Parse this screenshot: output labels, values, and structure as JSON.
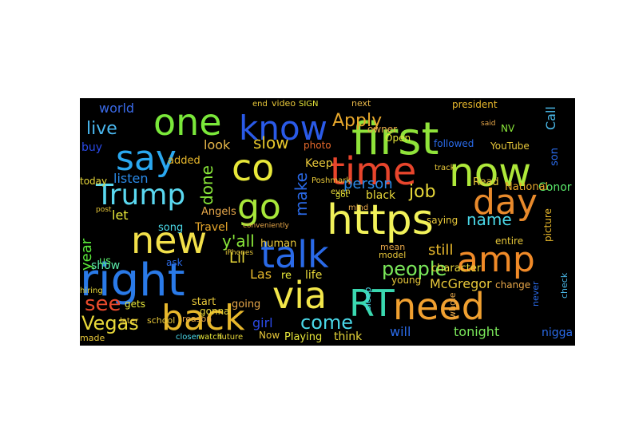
{
  "wordcloud": {
    "background": "#000000",
    "words": [
      {
        "text": "first",
        "color": "#8fe33a"
      },
      {
        "text": "time",
        "color": "#e8452c"
      },
      {
        "text": "now",
        "color": "#aee83a"
      },
      {
        "text": "day",
        "color": "#e88a2c"
      },
      {
        "text": "https",
        "color": "#f2f25a"
      },
      {
        "text": "amp",
        "color": "#f08a28"
      },
      {
        "text": "need",
        "color": "#f0a030"
      },
      {
        "text": "RT",
        "color": "#3ad8b0"
      },
      {
        "text": "via",
        "color": "#f2e64a"
      },
      {
        "text": "talk",
        "color": "#2a6ae8"
      },
      {
        "text": "right",
        "color": "#2a7ae8"
      },
      {
        "text": "new",
        "color": "#f2e04a"
      },
      {
        "text": "back",
        "color": "#e8b82c"
      },
      {
        "text": "go",
        "color": "#a8e83a"
      },
      {
        "text": "co",
        "color": "#e8e83a"
      },
      {
        "text": "know",
        "color": "#2a5ae8"
      },
      {
        "text": "one",
        "color": "#7ae83a"
      },
      {
        "text": "say",
        "color": "#2aa8f0"
      },
      {
        "text": "Trump",
        "color": "#5ad8f0"
      },
      {
        "text": "see",
        "color": "#e84a2c"
      },
      {
        "text": "Vegas",
        "color": "#e8d83a"
      },
      {
        "text": "live",
        "color": "#4ab8f0"
      },
      {
        "text": "world",
        "color": "#3a6ae8"
      },
      {
        "text": "Apply",
        "color": "#e8a82c"
      },
      {
        "text": "people",
        "color": "#7ae85a"
      },
      {
        "text": "come",
        "color": "#4ad8e8"
      },
      {
        "text": "done",
        "color": "#8ae83a"
      },
      {
        "text": "slow",
        "color": "#e8c82c"
      },
      {
        "text": "look",
        "color": "#e8b84a"
      },
      {
        "text": "job",
        "color": "#e8d83a"
      },
      {
        "text": "person",
        "color": "#2a8ae8"
      },
      {
        "text": "name",
        "color": "#4ad8e8"
      },
      {
        "text": "make",
        "color": "#2a6ae8"
      },
      {
        "text": "y'all",
        "color": "#8ae83a"
      },
      {
        "text": "Lil",
        "color": "#e8d83a"
      },
      {
        "text": "Las",
        "color": "#e8b82c"
      },
      {
        "text": "McGregor",
        "color": "#e8c83a"
      },
      {
        "text": "still",
        "color": "#e8b82c"
      },
      {
        "text": "year",
        "color": "#5ae83a"
      },
      {
        "text": "show",
        "color": "#5ae8a8"
      },
      {
        "text": "let",
        "color": "#e8e83a"
      },
      {
        "text": "listen",
        "color": "#2a8ae8"
      },
      {
        "text": "buy",
        "color": "#2a4ae8"
      },
      {
        "text": "added",
        "color": "#e8b82c"
      },
      {
        "text": "today",
        "color": "#e8d83a"
      },
      {
        "text": "Call",
        "color": "#4ab8e8"
      },
      {
        "text": "Read",
        "color": "#e8c83a"
      },
      {
        "text": "son",
        "color": "#2a6ae8"
      },
      {
        "text": "Conor",
        "color": "#5ae86a"
      },
      {
        "text": "National",
        "color": "#e8a82c"
      },
      {
        "text": "YouTube",
        "color": "#e8c83a"
      },
      {
        "text": "followed",
        "color": "#2a6ae8"
      },
      {
        "text": "Open",
        "color": "#e8e83a"
      },
      {
        "text": "owner",
        "color": "#e8a84a"
      },
      {
        "text": "NV",
        "color": "#8ae83a"
      },
      {
        "text": "president",
        "color": "#e8b82c"
      },
      {
        "text": "next",
        "color": "#e8b84a"
      },
      {
        "text": "video",
        "color": "#e8c83a"
      },
      {
        "text": "SIGN",
        "color": "#e8e83a"
      },
      {
        "text": "end",
        "color": "#e8c83a"
      },
      {
        "text": "photo",
        "color": "#e86a2c"
      },
      {
        "text": "Keep",
        "color": "#e8c83a"
      },
      {
        "text": "black",
        "color": "#e8d83a"
      },
      {
        "text": "Travel",
        "color": "#e8a82c"
      },
      {
        "text": "Angels",
        "color": "#e8a84a"
      },
      {
        "text": "song",
        "color": "#4ad8e8"
      },
      {
        "text": "human",
        "color": "#e8c83a"
      },
      {
        "text": "girl",
        "color": "#2a4ae8"
      },
      {
        "text": "life",
        "color": "#e8d83a"
      },
      {
        "text": "re",
        "color": "#e8e83a"
      },
      {
        "text": "will",
        "color": "#2a6ae8"
      },
      {
        "text": "think",
        "color": "#e8d83a"
      },
      {
        "text": "tonight",
        "color": "#7ae85a"
      },
      {
        "text": "nigga",
        "color": "#2a6ae8"
      },
      {
        "text": "saying",
        "color": "#e8c83a"
      },
      {
        "text": "model",
        "color": "#e8c83a"
      },
      {
        "text": "mean",
        "color": "#e8a84a"
      },
      {
        "text": "young",
        "color": "#e8c83a"
      },
      {
        "text": "character",
        "color": "#e8d83a"
      },
      {
        "text": "entire",
        "color": "#e8c83a"
      },
      {
        "text": "picture",
        "color": "#e8b82c"
      },
      {
        "text": "check",
        "color": "#4ab8e8"
      },
      {
        "text": "never",
        "color": "#2a6ae8"
      },
      {
        "text": "change",
        "color": "#e8a84a"
      },
      {
        "text": "us",
        "color": "#5ae86a"
      },
      {
        "text": "ask",
        "color": "#2a6ae8"
      },
      {
        "text": "start",
        "color": "#e8c83a"
      },
      {
        "text": "going",
        "color": "#e8a84a"
      },
      {
        "text": "gonna",
        "color": "#e8d83a"
      },
      {
        "text": "gets",
        "color": "#e8e83a"
      },
      {
        "text": "made",
        "color": "#e8c83a"
      },
      {
        "text": "Playing",
        "color": "#e8e83a"
      },
      {
        "text": "Now",
        "color": "#e8c83a"
      },
      {
        "text": "reason",
        "color": "#e8a84a"
      },
      {
        "text": "school",
        "color": "#e8c83a"
      },
      {
        "text": "sleep",
        "color": "#4ad8e8"
      },
      {
        "text": "whole",
        "color": "#e8a84a"
      },
      {
        "text": "Poshmark",
        "color": "#e8c83a"
      },
      {
        "text": "even",
        "color": "#e8d83a"
      },
      {
        "text": "got",
        "color": "#e8e83a"
      },
      {
        "text": "mind",
        "color": "#e8a84a"
      },
      {
        "text": "later",
        "color": "#e8c83a"
      },
      {
        "text": "hiring",
        "color": "#e8d83a"
      },
      {
        "text": "track",
        "color": "#e8c83a"
      },
      {
        "text": "said",
        "color": "#e8a84a"
      },
      {
        "text": "post",
        "color": "#e8c83a"
      },
      {
        "text": "future",
        "color": "#e8d83a"
      },
      {
        "text": "watch",
        "color": "#e8e83a"
      },
      {
        "text": "iPhones",
        "color": "#e8c83a"
      },
      {
        "text": "conveniently",
        "color": "#e8a84a"
      },
      {
        "text": "closer",
        "color": "#4ad8e8"
      }
    ]
  }
}
